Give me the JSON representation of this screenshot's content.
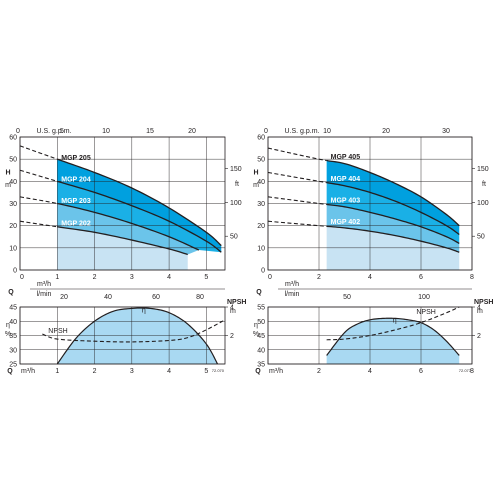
{
  "chart_data": [
    {
      "type": "line",
      "title": "",
      "top_axis": {
        "label": "U.S. g.p.m.",
        "ticks": [
          0,
          5,
          10,
          15,
          20
        ]
      },
      "xlim": [
        0,
        5.5
      ],
      "x_ticks": [
        0,
        1,
        2,
        3,
        4,
        5
      ],
      "x_tick_labels": [
        "0",
        "1",
        "2",
        "3",
        "4",
        "5"
      ],
      "ylabel": "H",
      "yunit": "m",
      "ylim": [
        0,
        60
      ],
      "y_ticks": [
        0,
        10,
        20,
        30,
        40,
        50,
        60
      ],
      "right_axis": {
        "label": "ft",
        "ticks": [
          50,
          100,
          150
        ]
      },
      "lower_axis": {
        "label": "Q",
        "unit_top": "m³/h",
        "unit_bottom": "l/min",
        "ticks": [
          20,
          40,
          60,
          80
        ]
      },
      "operating_range": [
        1,
        5.5
      ],
      "series": [
        {
          "name": "MGP 205",
          "x": [
            0,
            1,
            2,
            3,
            4,
            5,
            5.4
          ],
          "y": [
            56,
            50,
            44,
            37,
            28,
            17,
            11
          ]
        },
        {
          "name": "MGP 204",
          "x": [
            0,
            1,
            2,
            3,
            4,
            5,
            5.4
          ],
          "y": [
            45,
            40,
            35,
            29,
            22,
            13,
            8
          ]
        },
        {
          "name": "MGP 203",
          "x": [
            0,
            1,
            2,
            3,
            4,
            4.8
          ],
          "y": [
            33,
            30,
            26,
            21,
            15,
            9
          ]
        },
        {
          "name": "MGP 202",
          "x": [
            0,
            1,
            2,
            3,
            4,
            4.5
          ],
          "y": [
            22,
            19.5,
            17,
            13.5,
            9.5,
            7
          ]
        }
      ],
      "efficiency": {
        "label": "η",
        "unit": "%",
        "ylim": [
          25,
          45
        ],
        "y_ticks": [
          25,
          30,
          35,
          40,
          45
        ],
        "x": [
          1,
          1.5,
          2,
          2.5,
          3,
          3.5,
          4,
          4.5,
          5,
          5.3
        ],
        "y": [
          25,
          34,
          40,
          43.5,
          44.5,
          44.5,
          43,
          39,
          32,
          25
        ]
      },
      "npsh": {
        "label": "NPSH",
        "unit": "m",
        "ylim": [
          0,
          4
        ],
        "y_ticks": [
          2,
          4
        ],
        "x": [
          0.6,
          1,
          2,
          3,
          4,
          4.5,
          5,
          5.5
        ],
        "y": [
          2.1,
          1.75,
          1.6,
          1.55,
          1.65,
          1.85,
          2.4,
          3.1
        ]
      },
      "code": "72.070"
    },
    {
      "type": "line",
      "title": "",
      "top_axis": {
        "label": "U.S. g.p.m.",
        "ticks": [
          0,
          10,
          20,
          30
        ]
      },
      "xlim": [
        0,
        8
      ],
      "x_ticks": [
        0,
        2,
        4,
        6,
        8
      ],
      "x_tick_labels": [
        "0",
        "2",
        "4",
        "6",
        "8"
      ],
      "ylabel": "H",
      "yunit": "m",
      "ylim": [
        0,
        60
      ],
      "y_ticks": [
        0,
        10,
        20,
        30,
        40,
        50,
        60
      ],
      "right_axis": {
        "label": "ft",
        "ticks": [
          50,
          100,
          150
        ]
      },
      "lower_axis": {
        "label": "Q",
        "unit_top": "m³/h",
        "unit_bottom": "l/min",
        "ticks": [
          50,
          100
        ]
      },
      "operating_range": [
        2.3,
        7.5
      ],
      "series": [
        {
          "name": "MGP 405",
          "x": [
            0,
            2,
            3,
            4,
            5,
            6,
            7,
            7.5
          ],
          "y": [
            55,
            50,
            48,
            44,
            39,
            33,
            25,
            20
          ]
        },
        {
          "name": "MGP 404",
          "x": [
            0,
            2,
            3,
            4,
            5,
            6,
            7,
            7.5
          ],
          "y": [
            44,
            40,
            38,
            35,
            31,
            26,
            20,
            16
          ]
        },
        {
          "name": "MGP 403",
          "x": [
            0,
            2,
            3,
            4,
            5,
            6,
            7,
            7.5
          ],
          "y": [
            33,
            30,
            28.5,
            26,
            23,
            19.5,
            15,
            12
          ]
        },
        {
          "name": "MGP 402",
          "x": [
            0,
            2,
            3,
            4,
            5,
            6,
            7,
            7.5
          ],
          "y": [
            22,
            20,
            19,
            17.5,
            15.5,
            13,
            10,
            8
          ]
        }
      ],
      "efficiency": {
        "label": "η",
        "unit": "%",
        "ylim": [
          35,
          55
        ],
        "y_ticks": [
          35,
          40,
          45,
          50,
          55
        ],
        "x": [
          2.3,
          3,
          3.5,
          4,
          4.5,
          5,
          5.5,
          6,
          6.5,
          7,
          7.5
        ],
        "y": [
          38,
          46,
          49,
          50.5,
          51,
          51,
          50.5,
          49.5,
          47,
          43,
          38
        ]
      },
      "npsh": {
        "label": "NPSH",
        "unit": "m",
        "ylim": [
          0,
          4
        ],
        "y_ticks": [
          2,
          4
        ],
        "x": [
          2.3,
          3,
          4,
          5,
          6,
          7,
          7.5
        ],
        "y": [
          1.7,
          1.75,
          2.0,
          2.4,
          2.9,
          3.6,
          4.0
        ]
      },
      "code": "72.077"
    }
  ]
}
